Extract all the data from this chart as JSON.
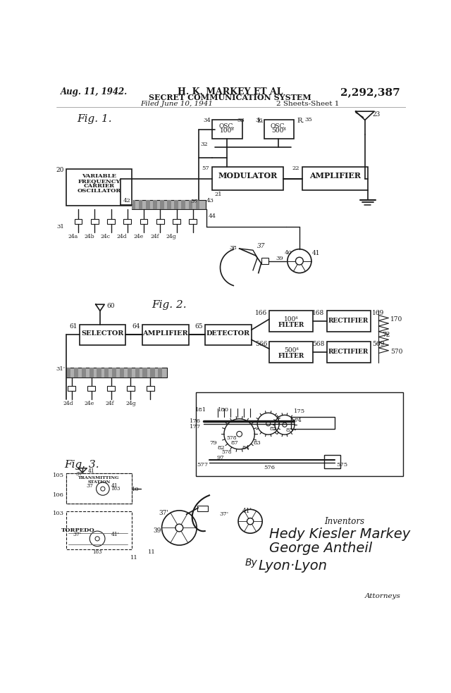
{
  "bg_color": "#ffffff",
  "line_color": "#1a1a1a",
  "header": {
    "date": "Aug. 11, 1942.",
    "inventor": "H. K. MARKEY ET AL",
    "patent_num": "2,292,387",
    "title": "SECRET COMMUNICATION SYSTEM",
    "filed": "Filed June 10, 1941",
    "sheets": "2 Sheets-Sheet 1"
  },
  "footer": {
    "inventors_label": "Inventors",
    "inventor1": "Hedy Kiesler Markey",
    "inventor2": "George Antheil",
    "by": "By",
    "sig": "Lyon & Lyon",
    "attorney": "Attorneys"
  }
}
